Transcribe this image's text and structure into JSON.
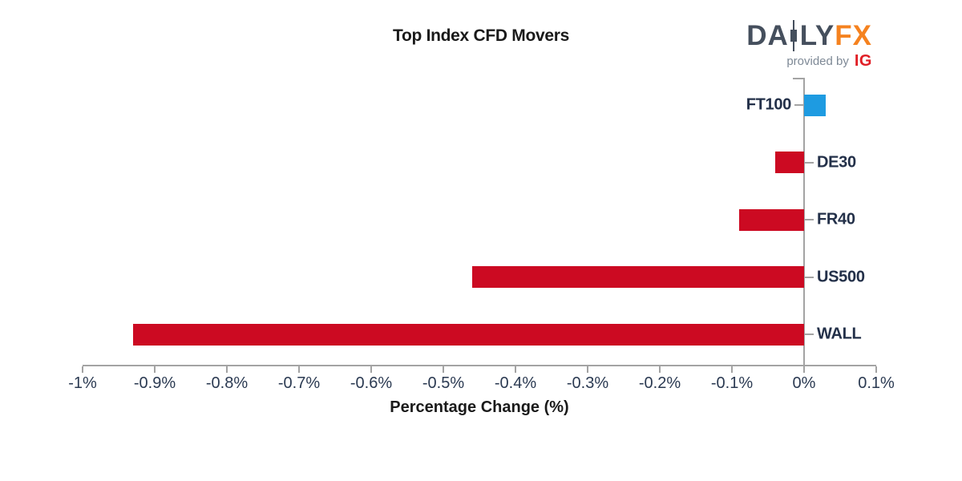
{
  "title": "Top Index CFD Movers",
  "logo": {
    "brand_left": "DA",
    "brand_right": "LY",
    "brand_suffix": "FX",
    "provided_by": "provided by",
    "provider": "IG",
    "candlestick_icon": "candlestick-icon",
    "colors": {
      "brand": "#454f5d",
      "suffix": "#f5821f",
      "provided_by": "#7e8996",
      "provider": "#e01e25"
    }
  },
  "chart_data": {
    "type": "bar",
    "orientation": "horizontal",
    "title": "Top Index CFD Movers",
    "xlabel": "Percentage Change (%)",
    "categories": [
      "FT100",
      "DE30",
      "FR40",
      "US500",
      "WALL"
    ],
    "values": [
      0.03,
      -0.04,
      -0.09,
      -0.46,
      -0.93
    ],
    "xlim": [
      -1.0,
      0.1
    ],
    "xtick_values": [
      -1.0,
      -0.9,
      -0.8,
      -0.7,
      -0.6,
      -0.5,
      -0.4,
      -0.3,
      -0.2,
      -0.1,
      0.0,
      0.1
    ],
    "xtick_labels": [
      "-1%",
      "-0.9%",
      "-0.8%",
      "-0.7%",
      "-0.6%",
      "-0.5%",
      "-0.4%",
      "-0.3%",
      "-0.2%",
      "-0.1%",
      "0%",
      "0.1%"
    ],
    "grid": false,
    "legend": null,
    "colors": {
      "positive_bar": "#1e9be1",
      "negative_bar": "#cc0a22",
      "axis": "#a3a3a3",
      "bar_label": "#233049",
      "tick_label": "#2b3a52"
    }
  }
}
